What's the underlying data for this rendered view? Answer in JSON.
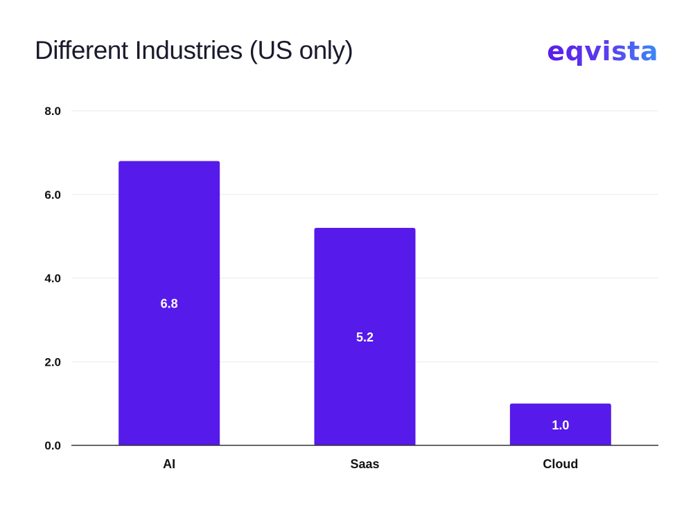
{
  "header": {
    "title": "Different Industries (US only)",
    "logo_text": "eqvista"
  },
  "colors": {
    "bar": "#561aea",
    "grid": "#e9e9ef",
    "axis": "#333333"
  },
  "chart_data": {
    "type": "bar",
    "title": "Different Industries (US only)",
    "categories": [
      "AI",
      "Saas",
      "Cloud"
    ],
    "values": [
      6.8,
      5.2,
      1.0
    ],
    "value_labels": [
      "6.8",
      "5.2",
      "1.0"
    ],
    "y_ticks": [
      "0.0",
      "2.0",
      "4.0",
      "6.0",
      "8.0"
    ],
    "ylim": [
      0,
      8
    ],
    "xlabel": "",
    "ylabel": "",
    "grid": true,
    "legend": false
  }
}
